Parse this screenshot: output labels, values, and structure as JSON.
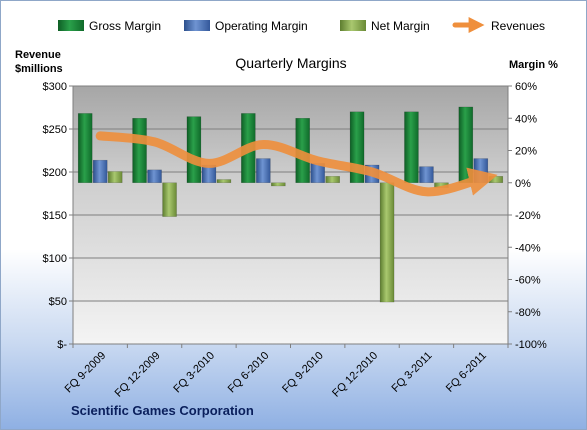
{
  "chart_data": {
    "type": "bar",
    "title": "Quarterly Margins",
    "footer": "Scientific Games Corporation",
    "categories": [
      "FQ 9-2009",
      "FQ 12-2009",
      "FQ 3-2010",
      "FQ 6-2010",
      "FQ 9-2010",
      "FQ 12-2010",
      "FQ 3-2011",
      "FQ 6-2011"
    ],
    "y_left": {
      "label_line1": "Revenue",
      "label_line2": "$millions",
      "range": [
        0,
        300
      ],
      "ticks": [
        0,
        50,
        100,
        150,
        200,
        250,
        300
      ],
      "tick_labels": [
        "$-",
        "$50",
        "$100",
        "$150",
        "$200",
        "$250",
        "$300"
      ]
    },
    "y_right": {
      "label": "Margin %",
      "range": [
        -100,
        60
      ],
      "ticks": [
        -100,
        -80,
        -60,
        -40,
        -20,
        0,
        20,
        40,
        60
      ],
      "tick_labels": [
        "-100%",
        "-80%",
        "-60%",
        "-40%",
        "-20%",
        "0%",
        "20%",
        "40%",
        "60%"
      ]
    },
    "series": [
      {
        "name": "Gross Margin",
        "axis": "right",
        "kind": "bar",
        "color": "#1e8a3c",
        "values": [
          43,
          40,
          41,
          43,
          40,
          44,
          44,
          47
        ]
      },
      {
        "name": "Operating Margin",
        "axis": "right",
        "kind": "bar",
        "color": "#4a72b8",
        "values": [
          14,
          8,
          11,
          15,
          12,
          11,
          10,
          15
        ]
      },
      {
        "name": "Net Margin",
        "axis": "right",
        "kind": "bar",
        "color": "#8db05a",
        "values": [
          7,
          -21,
          2,
          -2,
          4,
          -74,
          -3,
          4
        ]
      },
      {
        "name": "Revenues",
        "axis": "left",
        "kind": "line",
        "color": "#ef8f3c",
        "values": [
          242,
          235,
          210,
          232,
          213,
          200,
          177,
          192
        ]
      }
    ],
    "grid": true,
    "legend_position": "top"
  }
}
